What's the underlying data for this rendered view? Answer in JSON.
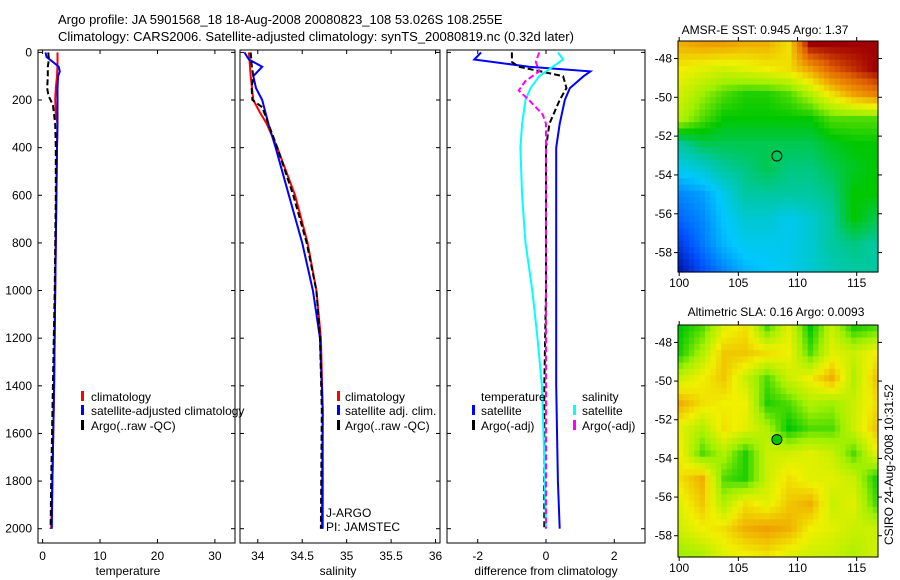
{
  "title_line1": "Argo profile: JA 5901568_18 18-Aug-2008 20080823_108 53.026S 108.255E",
  "title_line2": "Climatology: CARS2006. Satellite-adjusted climatology: synTS_20080819.nc (0.32d later)",
  "footer_stamp": "CSIRO 24-Aug-2008 10:31:52",
  "colors": {
    "climatology": "#ff0000",
    "satellite": "#0000ff",
    "argo": "#000000",
    "sal_satellite": "#00ffff",
    "sal_argo": "#ff00ff"
  },
  "chart_data": [
    {
      "type": "line",
      "xlabel": "temperature",
      "ylabel": "",
      "xlim": [
        -0.8,
        33.5
      ],
      "ylim": [
        2060,
        -10
      ],
      "xticks": [
        "0",
        "10",
        "20",
        "30"
      ],
      "xtick_values": [
        0,
        10,
        20,
        30
      ],
      "yticks": [
        "0",
        "200",
        "400",
        "600",
        "800",
        "1000",
        "1200",
        "1400",
        "1600",
        "1800",
        "2000"
      ],
      "ytick_values": [
        0,
        200,
        400,
        600,
        800,
        1000,
        1200,
        1400,
        1600,
        1800,
        2000
      ],
      "legend": [
        "climatology",
        "satellite-adjusted climatology",
        "Argo(..raw -QC)"
      ],
      "series": [
        {
          "name": "climatology",
          "color": "#ff0000",
          "dash": false,
          "depth": [
            0,
            50,
            100,
            150,
            200,
            260,
            300,
            400,
            600,
            1000,
            1400,
            1800,
            2000
          ],
          "values": [
            2.6,
            2.6,
            2.5,
            2.3,
            2.2,
            2.3,
            2.6,
            2.5,
            2.4,
            2.2,
            2.0,
            1.7,
            1.5
          ]
        },
        {
          "name": "satellite-adjusted climatology",
          "color": "#0000ff",
          "dash": false,
          "depth": [
            0,
            20,
            40,
            60,
            80,
            100,
            150,
            200,
            300,
            400,
            600,
            1000,
            1400,
            1800,
            2000
          ],
          "values": [
            0.5,
            0.7,
            1.8,
            2.8,
            3.0,
            2.7,
            2.6,
            2.6,
            2.6,
            2.5,
            2.4,
            2.2,
            2.0,
            1.7,
            1.6
          ]
        },
        {
          "name": "Argo(..raw -QC)",
          "color": "#000000",
          "dash": true,
          "depth": [
            0,
            30,
            60,
            100,
            150,
            180,
            220,
            300,
            400,
            600,
            1000,
            1400,
            1800,
            2000
          ],
          "values": [
            1.0,
            1.1,
            0.9,
            0.9,
            0.8,
            1.0,
            1.8,
            2.2,
            2.3,
            2.3,
            2.1,
            1.8,
            1.5,
            1.4
          ]
        }
      ]
    },
    {
      "type": "line",
      "xlabel": "salinity",
      "xlim": [
        33.8,
        36.05
      ],
      "ylim": [
        2060,
        -10
      ],
      "xticks": [
        "34",
        "34.5",
        "35",
        "35.5",
        "36"
      ],
      "xtick_values": [
        34,
        34.5,
        35,
        35.5,
        36
      ],
      "legend": [
        "climatology",
        "satellite adj. clim.",
        "Argo(..raw -QC)"
      ],
      "annotation": [
        "J-ARGO",
        "PI: JAMSTEC"
      ],
      "series": [
        {
          "name": "climatology",
          "color": "#ff0000",
          "dash": false,
          "depth": [
            0,
            100,
            200,
            250,
            300,
            400,
            500,
            600,
            800,
            1000,
            1200,
            1500,
            2000
          ],
          "values": [
            33.9,
            33.92,
            33.95,
            34.02,
            34.1,
            34.22,
            34.32,
            34.42,
            34.56,
            34.66,
            34.71,
            34.73,
            34.72
          ]
        },
        {
          "name": "satellite adj. clim.",
          "color": "#0000ff",
          "dash": false,
          "depth": [
            0,
            30,
            60,
            100,
            150,
            200,
            300,
            400,
            600,
            800,
            1000,
            1200,
            1500,
            2000
          ],
          "values": [
            33.85,
            33.9,
            34.05,
            33.95,
            33.98,
            34.05,
            34.12,
            34.2,
            34.35,
            34.5,
            34.62,
            34.7,
            34.73,
            34.73
          ]
        },
        {
          "name": "Argo(..raw -QC)",
          "color": "#000000",
          "dash": true,
          "depth": [
            0,
            50,
            100,
            150,
            200,
            230,
            300,
            400,
            600,
            800,
            1000,
            1200,
            1500,
            2000
          ],
          "values": [
            33.92,
            33.93,
            33.95,
            33.93,
            33.94,
            34.05,
            34.12,
            34.22,
            34.4,
            34.55,
            34.66,
            34.7,
            34.72,
            34.71
          ]
        }
      ]
    },
    {
      "type": "line",
      "xlabel": "difference from climatology",
      "xlim": [
        -2.9,
        2.9
      ],
      "ylim": [
        2060,
        -10
      ],
      "xticks": [
        "-2",
        "0",
        "2"
      ],
      "xtick_values": [
        -2,
        0,
        2
      ],
      "legend_temperature": [
        "temperature",
        "satellite",
        "Argo(-adj)"
      ],
      "legend_salinity": [
        "salinity",
        "satellite",
        "Argo(-adj)"
      ],
      "series": [
        {
          "name": "temperature satellite",
          "color": "#0000ff",
          "dash": false,
          "depth": [
            0,
            30,
            60,
            80,
            100,
            150,
            200,
            300,
            400,
            600,
            1000,
            1400,
            1800,
            2000
          ],
          "values": [
            -1.9,
            -2.1,
            -0.5,
            1.3,
            1.1,
            0.7,
            0.55,
            0.4,
            0.3,
            0.3,
            0.3,
            0.3,
            0.35,
            0.4
          ]
        },
        {
          "name": "temperature Argo(-adj)",
          "color": "#000000",
          "dash": true,
          "depth": [
            0,
            40,
            60,
            100,
            150,
            200,
            300,
            400,
            600,
            1000,
            1400,
            2000
          ],
          "values": [
            -1.0,
            -1.0,
            -0.8,
            0.5,
            0.6,
            0.4,
            0.1,
            0.0,
            0.0,
            0.0,
            -0.05,
            -0.05
          ]
        },
        {
          "name": "salinity satellite",
          "color": "#00ffff",
          "dash": false,
          "depth": [
            0,
            30,
            60,
            100,
            150,
            200,
            300,
            400,
            600,
            800,
            1000,
            1200,
            1400,
            1700,
            2000
          ],
          "values": [
            0.35,
            0.5,
            0.2,
            -0.2,
            -0.45,
            -0.6,
            -0.7,
            -0.75,
            -0.7,
            -0.6,
            -0.4,
            -0.25,
            -0.12,
            -0.05,
            0.0
          ]
        },
        {
          "name": "salinity Argo(-adj)",
          "color": "#ff00ff",
          "dash": true,
          "depth": [
            0,
            40,
            80,
            120,
            160,
            200,
            260,
            300,
            400,
            1000,
            2000
          ],
          "values": [
            -0.2,
            -0.3,
            -0.2,
            -0.6,
            -0.8,
            -0.5,
            -0.1,
            0.0,
            0.0,
            0.0,
            0.0
          ]
        }
      ]
    },
    {
      "type": "heatmap",
      "title": "AMSR-E SST: 0.945 Argo: 1.37",
      "xlim": [
        99.9,
        116.8
      ],
      "ylim": [
        -59.0,
        -47.1
      ],
      "xticks": [
        "100",
        "105",
        "110",
        "115"
      ],
      "xtick_values": [
        100,
        105,
        110,
        115
      ],
      "yticks": [
        "-48",
        "-50",
        "-52",
        "-54",
        "-56",
        "-58"
      ],
      "ytick_values": [
        -48,
        -50,
        -52,
        -54,
        -56,
        -58
      ],
      "marker": {
        "lon": 108.255,
        "lat": -53.026
      },
      "grid_normalized": [
        [
          0.78,
          0.8,
          0.8,
          0.78,
          0.78,
          0.72,
          1.0,
          1.0,
          1.0,
          1.0
        ],
        [
          0.7,
          0.68,
          0.66,
          0.68,
          0.7,
          0.72,
          0.8,
          0.9,
          0.95,
          1.0
        ],
        [
          0.66,
          0.6,
          0.55,
          0.52,
          0.52,
          0.55,
          0.62,
          0.72,
          0.8,
          0.85
        ],
        [
          0.62,
          0.55,
          0.5,
          0.5,
          0.5,
          0.5,
          0.5,
          0.55,
          0.55,
          0.55
        ],
        [
          0.4,
          0.45,
          0.45,
          0.45,
          0.45,
          0.45,
          0.45,
          0.48,
          0.5,
          0.5
        ],
        [
          0.32,
          0.35,
          0.4,
          0.42,
          0.45,
          0.42,
          0.42,
          0.45,
          0.48,
          0.5
        ],
        [
          0.22,
          0.25,
          0.32,
          0.4,
          0.4,
          0.4,
          0.4,
          0.42,
          0.5,
          0.5
        ],
        [
          0.18,
          0.22,
          0.3,
          0.35,
          0.35,
          0.32,
          0.35,
          0.4,
          0.5,
          0.45
        ],
        [
          0.12,
          0.2,
          0.28,
          0.32,
          0.32,
          0.32,
          0.35,
          0.4,
          0.42,
          0.4
        ],
        [
          0.05,
          0.15,
          0.22,
          0.28,
          0.3,
          0.32,
          0.35,
          0.38,
          0.4,
          0.4
        ]
      ]
    },
    {
      "type": "heatmap",
      "title": "Altimetric SLA: 0.16 Argo: 0.0093",
      "xlim": [
        99.9,
        116.8
      ],
      "ylim": [
        -59.1,
        -47.1
      ],
      "xticks": [
        "100",
        "105",
        "110",
        "115"
      ],
      "xtick_values": [
        100,
        105,
        110,
        115
      ],
      "yticks": [
        "-48",
        "-50",
        "-52",
        "-54",
        "-56",
        "-58"
      ],
      "ytick_values": [
        -48,
        -50,
        -52,
        -54,
        -56,
        -58
      ],
      "marker": {
        "lon": 108.255,
        "lat": -53.026
      },
      "grid_normalized": [
        [
          0.5,
          0.55,
          0.68,
          0.72,
          0.55,
          0.68,
          0.5,
          0.65,
          0.52,
          0.55
        ],
        [
          0.52,
          0.62,
          0.75,
          0.75,
          0.72,
          0.7,
          0.55,
          0.68,
          0.65,
          0.7
        ],
        [
          0.65,
          0.7,
          0.75,
          0.65,
          0.55,
          0.65,
          0.7,
          0.78,
          0.62,
          0.75
        ],
        [
          0.78,
          0.72,
          0.7,
          0.7,
          0.52,
          0.55,
          0.62,
          0.6,
          0.65,
          0.72
        ],
        [
          0.68,
          0.62,
          0.72,
          0.68,
          0.62,
          0.5,
          0.55,
          0.55,
          0.65,
          0.75
        ],
        [
          0.7,
          0.55,
          0.62,
          0.52,
          0.65,
          0.66,
          0.68,
          0.65,
          0.55,
          0.68
        ],
        [
          0.72,
          0.78,
          0.55,
          0.52,
          0.65,
          0.72,
          0.68,
          0.68,
          0.65,
          0.52
        ],
        [
          0.68,
          0.75,
          0.62,
          0.72,
          0.68,
          0.75,
          0.78,
          0.65,
          0.68,
          0.55
        ],
        [
          0.66,
          0.7,
          0.72,
          0.78,
          0.8,
          0.78,
          0.7,
          0.68,
          0.65,
          0.65
        ],
        [
          0.6,
          0.62,
          0.68,
          0.7,
          0.72,
          0.68,
          0.66,
          0.65,
          0.62,
          0.66
        ]
      ]
    }
  ]
}
